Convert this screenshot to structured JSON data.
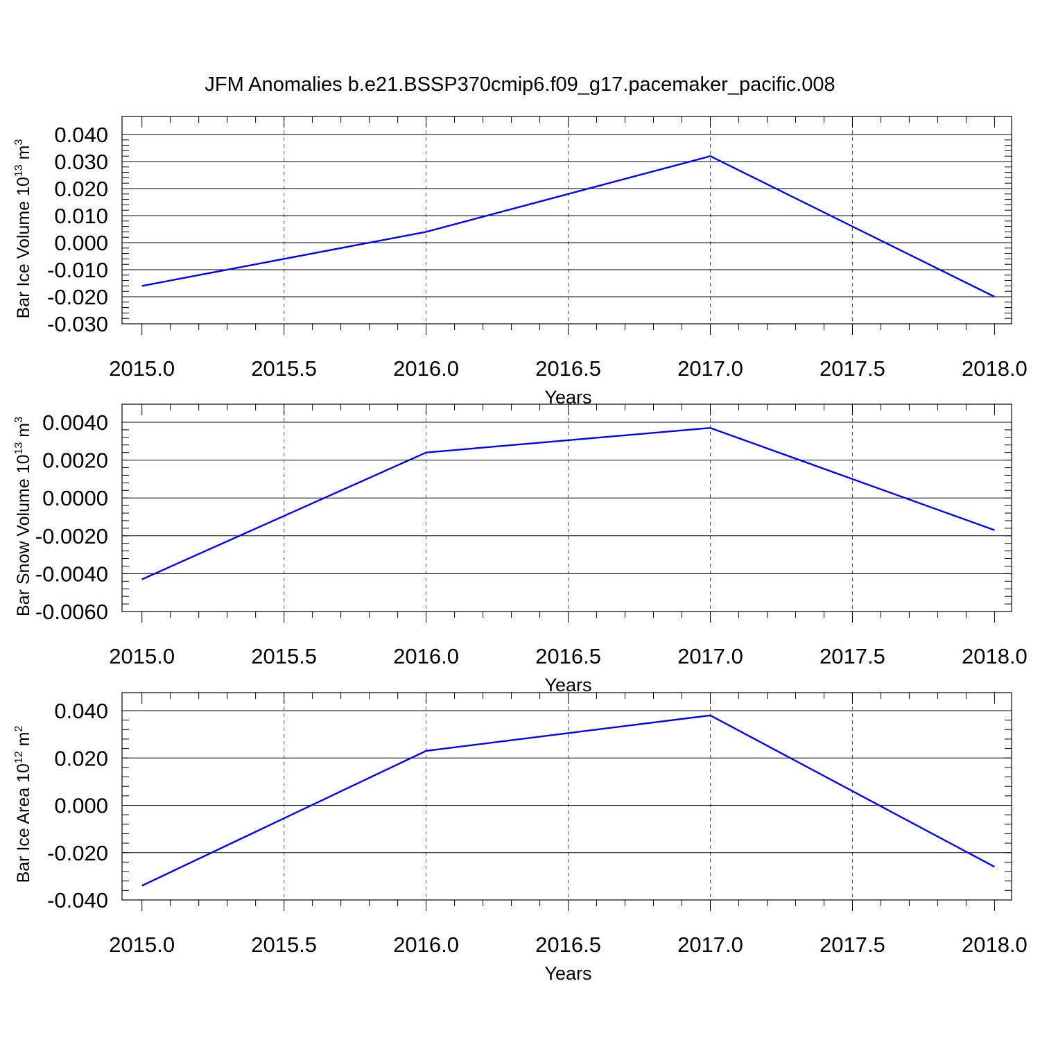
{
  "figure": {
    "title": "JFM Anomalies b.e21.BSSP370cmip6.f09_g17.pacemaker_pacific.008"
  },
  "chart_data": [
    {
      "type": "line",
      "xlabel": "Years",
      "ylabel": {
        "main": "Bar Ice Volume 10",
        "exp": "13",
        "unit": " m",
        "unit_exp": "3"
      },
      "x": [
        2015,
        2016,
        2017,
        2018
      ],
      "series": [
        {
          "values": [
            -0.016,
            0.004,
            0.032,
            -0.02
          ],
          "color": "#0000ff"
        }
      ],
      "xlim": [
        2014.93,
        2018.06
      ],
      "ylim": [
        -0.03,
        0.04
      ],
      "yticks": [
        -0.03,
        -0.02,
        -0.01,
        0.0,
        0.01,
        0.02,
        0.03,
        0.04
      ],
      "yticklabels": [
        "-0.030",
        "-0.020",
        "-0.010",
        "0.000",
        "0.010",
        "0.020",
        "0.030",
        "0.040"
      ],
      "xticks": [
        2015.0,
        2015.5,
        2016.0,
        2016.5,
        2017.0,
        2017.5,
        2018.0
      ],
      "xticklabels": [
        "2015.0",
        "2015.5",
        "2016.0",
        "2016.5",
        "2017.0",
        "2017.5",
        "2018.0"
      ],
      "grid": "vertical dashed at major x ticks",
      "legend": "none"
    },
    {
      "type": "line",
      "xlabel": "Years",
      "ylabel": {
        "main": "Bar Snow Volume 10",
        "exp": "13",
        "unit": " m",
        "unit_exp": "3"
      },
      "x": [
        2015,
        2016,
        2017,
        2018
      ],
      "series": [
        {
          "values": [
            -0.0043,
            0.0024,
            0.0037,
            -0.0017
          ],
          "color": "#0000ff"
        }
      ],
      "xlim": [
        2014.93,
        2018.06
      ],
      "ylim": [
        -0.006,
        0.004
      ],
      "yticks": [
        -0.006,
        -0.004,
        -0.002,
        0.0,
        0.002,
        0.004
      ],
      "yticklabels": [
        "-0.0060",
        "-0.0040",
        "-0.0020",
        "0.0000",
        "0.0020",
        "0.0040"
      ],
      "xticks": [
        2015.0,
        2015.5,
        2016.0,
        2016.5,
        2017.0,
        2017.5,
        2018.0
      ],
      "xticklabels": [
        "2015.0",
        "2015.5",
        "2016.0",
        "2016.5",
        "2017.0",
        "2017.5",
        "2018.0"
      ],
      "grid": "vertical dashed at major x ticks",
      "legend": "none"
    },
    {
      "type": "line",
      "xlabel": "Years",
      "ylabel": {
        "main": "Bar Ice Area 10",
        "exp": "12",
        "unit": " m",
        "unit_exp": "2"
      },
      "x": [
        2015,
        2016,
        2017,
        2018
      ],
      "series": [
        {
          "values": [
            -0.034,
            0.023,
            0.038,
            -0.026
          ],
          "color": "#0000ff"
        }
      ],
      "xlim": [
        2014.93,
        2018.06
      ],
      "ylim": [
        -0.04,
        0.04
      ],
      "yticks": [
        -0.04,
        -0.02,
        0.0,
        0.02,
        0.04
      ],
      "yticklabels": [
        "-0.040",
        "-0.020",
        "0.000",
        "0.020",
        "0.040"
      ],
      "xticks": [
        2015.0,
        2015.5,
        2016.0,
        2016.5,
        2017.0,
        2017.5,
        2018.0
      ],
      "xticklabels": [
        "2015.0",
        "2015.5",
        "2016.0",
        "2016.5",
        "2017.0",
        "2017.5",
        "2018.0"
      ],
      "grid": "vertical dashed at major x ticks",
      "legend": "none"
    }
  ]
}
